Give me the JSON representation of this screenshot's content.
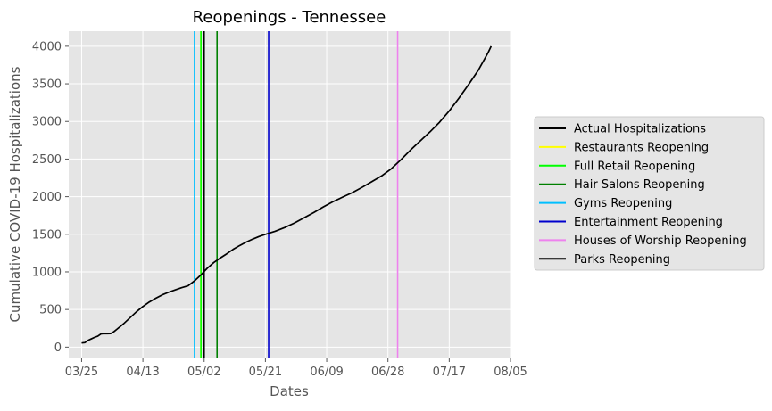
{
  "chart_data": {
    "type": "line",
    "title": "Reopenings - Tennessee",
    "xlabel": "Dates",
    "ylabel": "Cumulative COVID-19 Hospitalizations",
    "x_axis_kind": "date",
    "year": 2020,
    "xlim": [
      "2020-03-21",
      "2020-08-05"
    ],
    "ylim": [
      -150,
      4200
    ],
    "x_ticks": [
      {
        "date": "2020-03-25",
        "label": "03/25"
      },
      {
        "date": "2020-04-13",
        "label": "04/13"
      },
      {
        "date": "2020-05-02",
        "label": "05/02"
      },
      {
        "date": "2020-05-21",
        "label": "05/21"
      },
      {
        "date": "2020-06-09",
        "label": "06/09"
      },
      {
        "date": "2020-06-28",
        "label": "06/28"
      },
      {
        "date": "2020-07-17",
        "label": "07/17"
      },
      {
        "date": "2020-08-05",
        "label": "08/05"
      }
    ],
    "y_ticks": [
      0,
      500,
      1000,
      1500,
      2000,
      2500,
      3000,
      3500,
      4000
    ],
    "grid": true,
    "background": "#e5e5e5",
    "legend_position": "outside-right",
    "series": [
      {
        "name": "Actual Hospitalizations",
        "color": "#000000",
        "points": [
          [
            "2020-03-25",
            55
          ],
          [
            "2020-03-26",
            60
          ],
          [
            "2020-03-27",
            90
          ],
          [
            "2020-03-28",
            110
          ],
          [
            "2020-03-29",
            130
          ],
          [
            "2020-03-30",
            145
          ],
          [
            "2020-03-31",
            175
          ],
          [
            "2020-04-01",
            180
          ],
          [
            "2020-04-02",
            178
          ],
          [
            "2020-04-03",
            180
          ],
          [
            "2020-04-04",
            205
          ],
          [
            "2020-04-05",
            240
          ],
          [
            "2020-04-07",
            310
          ],
          [
            "2020-04-09",
            390
          ],
          [
            "2020-04-11",
            470
          ],
          [
            "2020-04-13",
            540
          ],
          [
            "2020-04-15",
            600
          ],
          [
            "2020-04-17",
            650
          ],
          [
            "2020-04-19",
            695
          ],
          [
            "2020-04-21",
            730
          ],
          [
            "2020-04-23",
            760
          ],
          [
            "2020-04-25",
            790
          ],
          [
            "2020-04-27",
            815
          ],
          [
            "2020-04-29",
            880
          ],
          [
            "2020-05-01",
            960
          ],
          [
            "2020-05-03",
            1050
          ],
          [
            "2020-05-05",
            1125
          ],
          [
            "2020-05-07",
            1185
          ],
          [
            "2020-05-09",
            1240
          ],
          [
            "2020-05-11",
            1300
          ],
          [
            "2020-05-13",
            1350
          ],
          [
            "2020-05-15",
            1395
          ],
          [
            "2020-05-17",
            1435
          ],
          [
            "2020-05-19",
            1470
          ],
          [
            "2020-05-21",
            1500
          ],
          [
            "2020-05-24",
            1540
          ],
          [
            "2020-05-27",
            1590
          ],
          [
            "2020-05-30",
            1650
          ],
          [
            "2020-06-02",
            1720
          ],
          [
            "2020-06-05",
            1790
          ],
          [
            "2020-06-08",
            1865
          ],
          [
            "2020-06-11",
            1935
          ],
          [
            "2020-06-14",
            1995
          ],
          [
            "2020-06-17",
            2055
          ],
          [
            "2020-06-20",
            2125
          ],
          [
            "2020-06-23",
            2200
          ],
          [
            "2020-06-26",
            2275
          ],
          [
            "2020-06-29",
            2370
          ],
          [
            "2020-07-02",
            2490
          ],
          [
            "2020-07-05",
            2620
          ],
          [
            "2020-07-08",
            2740
          ],
          [
            "2020-07-11",
            2860
          ],
          [
            "2020-07-14",
            2990
          ],
          [
            "2020-07-17",
            3140
          ],
          [
            "2020-07-20",
            3310
          ],
          [
            "2020-07-23",
            3490
          ],
          [
            "2020-07-26",
            3680
          ],
          [
            "2020-07-29",
            3910
          ],
          [
            "2020-07-30",
            4000
          ]
        ]
      }
    ],
    "reopenings": [
      {
        "name": "Restaurants Reopening",
        "date": "2020-05-01",
        "color": "#ffff00"
      },
      {
        "name": "Full Retail Reopening",
        "date": "2020-05-01",
        "color": "#00ff00"
      },
      {
        "name": "Hair Salons Reopening",
        "date": "2020-05-06",
        "color": "#008000"
      },
      {
        "name": "Gyms Reopening",
        "date": "2020-04-29",
        "color": "#00bfff"
      },
      {
        "name": "Entertainment Reopening",
        "date": "2020-05-22",
        "color": "#0000cd"
      },
      {
        "name": "Houses of Worship Reopening",
        "date": "2020-07-01",
        "color": "#ee82ee"
      },
      {
        "name": "Parks Reopening",
        "date": "2020-05-02",
        "color": "#000000"
      }
    ],
    "legend_entries": [
      {
        "label": "Actual Hospitalizations",
        "color": "#000000"
      },
      {
        "label": "Restaurants Reopening",
        "color": "#ffff00"
      },
      {
        "label": "Full Retail Reopening",
        "color": "#00ff00"
      },
      {
        "label": "Hair Salons Reopening",
        "color": "#008000"
      },
      {
        "label": "Gyms Reopening",
        "color": "#00bfff"
      },
      {
        "label": "Entertainment Reopening",
        "color": "#0000cd"
      },
      {
        "label": "Houses of Worship Reopening",
        "color": "#ee82ee"
      },
      {
        "label": "Parks Reopening",
        "color": "#000000"
      }
    ]
  }
}
